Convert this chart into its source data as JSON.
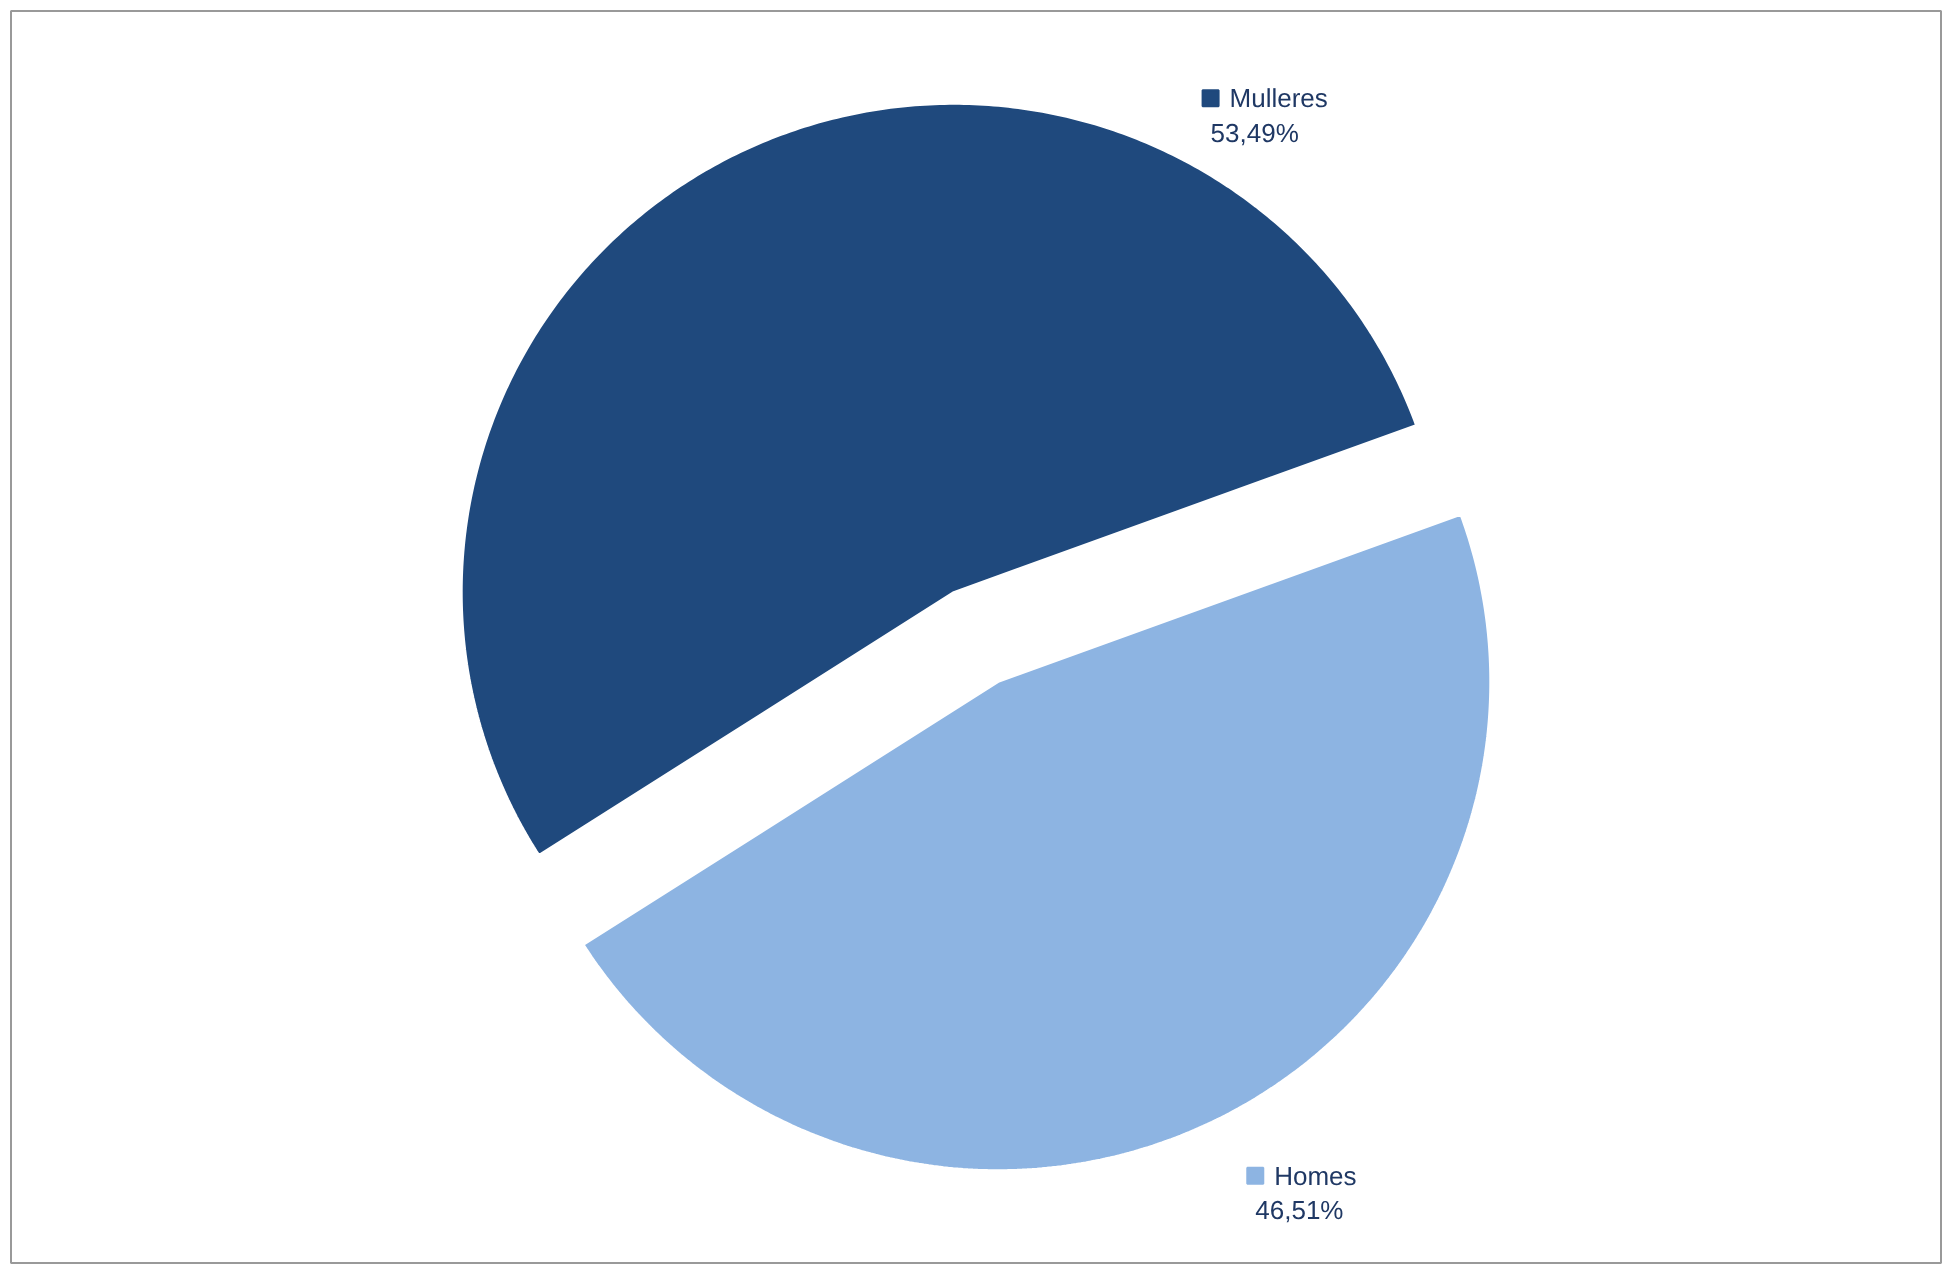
{
  "chart_data": {
    "type": "pie",
    "categories": [
      "Mulleres",
      "Homes"
    ],
    "values": [
      53.49,
      46.51
    ],
    "colors": [
      "#1f497d",
      "#8db4e2"
    ],
    "value_labels": [
      "53,49%",
      "46,51%"
    ],
    "legend": "right"
  }
}
